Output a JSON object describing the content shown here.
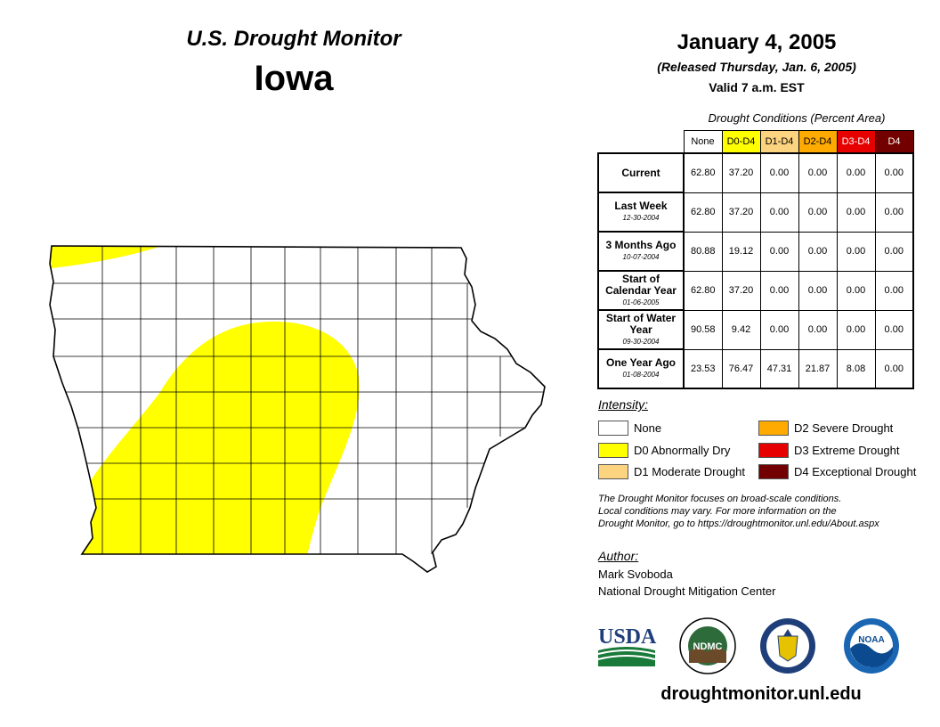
{
  "header": {
    "title": "U.S. Drought Monitor",
    "state": "Iowa",
    "date": "January 4, 2005",
    "released": "(Released Thursday, Jan. 6, 2005)",
    "valid": "Valid 7 a.m. EST"
  },
  "table": {
    "caption": "Drought Conditions (Percent Area)",
    "columns": [
      {
        "label": "None",
        "color": "#ffffff",
        "text_color": "#000000"
      },
      {
        "label": "D0-D4",
        "color": "#ffff00",
        "text_color": "#000000"
      },
      {
        "label": "D1-D4",
        "color": "#fcd37f",
        "text_color": "#000000"
      },
      {
        "label": "D2-D4",
        "color": "#ffaa00",
        "text_color": "#000000"
      },
      {
        "label": "D3-D4",
        "color": "#e60000",
        "text_color": "#ffffff"
      },
      {
        "label": "D4",
        "color": "#730000",
        "text_color": "#ffffff"
      }
    ],
    "rows": [
      {
        "label": "Current",
        "sub": "",
        "values": [
          "62.80",
          "37.20",
          "0.00",
          "0.00",
          "0.00",
          "0.00"
        ]
      },
      {
        "label": "Last Week",
        "sub": "12-30-2004",
        "values": [
          "62.80",
          "37.20",
          "0.00",
          "0.00",
          "0.00",
          "0.00"
        ]
      },
      {
        "label": "3 Months Ago",
        "sub": "10-07-2004",
        "values": [
          "80.88",
          "19.12",
          "0.00",
          "0.00",
          "0.00",
          "0.00"
        ]
      },
      {
        "label": "Start of Calendar Year",
        "sub": "01-06-2005",
        "values": [
          "62.80",
          "37.20",
          "0.00",
          "0.00",
          "0.00",
          "0.00"
        ]
      },
      {
        "label": "Start of Water Year",
        "sub": "09-30-2004",
        "values": [
          "90.58",
          "9.42",
          "0.00",
          "0.00",
          "0.00",
          "0.00"
        ]
      },
      {
        "label": "One Year Ago",
        "sub": "01-08-2004",
        "values": [
          "23.53",
          "76.47",
          "47.31",
          "21.87",
          "8.08",
          "0.00"
        ]
      }
    ]
  },
  "legend": {
    "title": "Intensity:",
    "items": [
      {
        "label": "None",
        "color": "#ffffff"
      },
      {
        "label": "D0 Abnormally Dry",
        "color": "#ffff00"
      },
      {
        "label": "D1 Moderate Drought",
        "color": "#fcd37f"
      },
      {
        "label": "D2 Severe Drought",
        "color": "#ffaa00"
      },
      {
        "label": "D3 Extreme Drought",
        "color": "#e60000"
      },
      {
        "label": "D4 Exceptional Drought",
        "color": "#730000"
      }
    ]
  },
  "note": {
    "line1": "The Drought Monitor focuses on broad-scale conditions.",
    "line2": "Local conditions may vary. For more information on the",
    "line3": "Drought Monitor, go to https://droughtmonitor.unl.edu/About.aspx"
  },
  "author": {
    "label": "Author:",
    "name": "Mark Svoboda",
    "org": "National Drought Mitigation Center"
  },
  "logos": {
    "usda": "USDA",
    "ndmc": "NDMC",
    "noaa": "NOAA"
  },
  "url": "droughtmonitor.unl.edu",
  "map_colors": {
    "d0": "#ffff00",
    "none": "#ffffff"
  }
}
